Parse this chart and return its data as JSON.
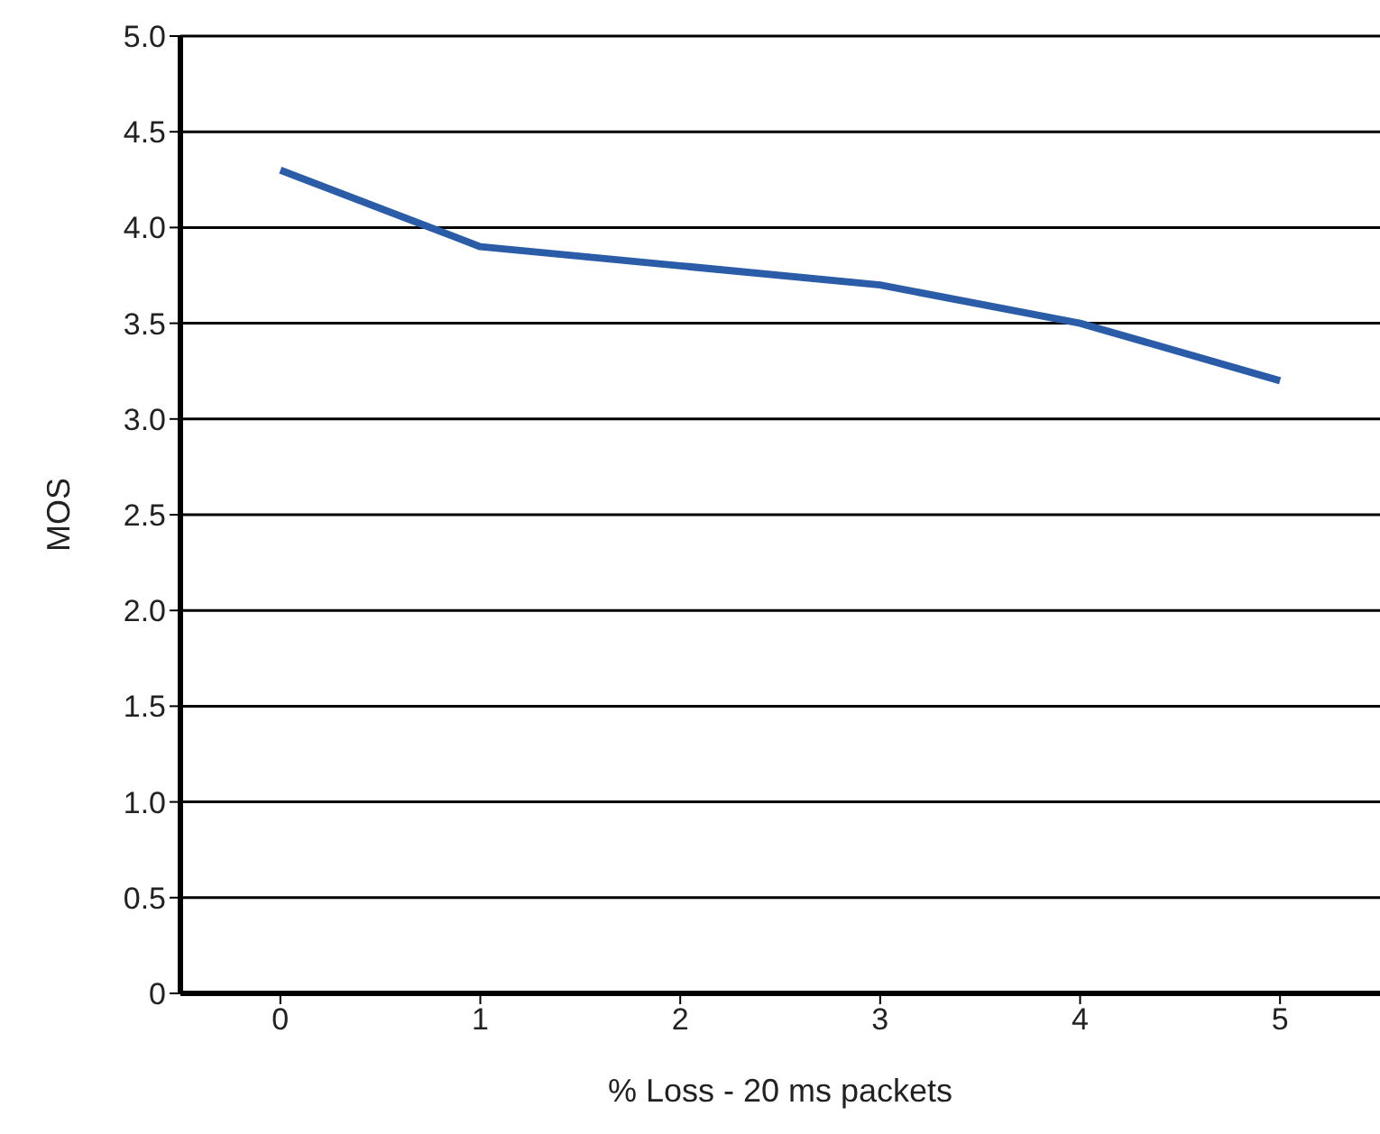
{
  "chart_data": {
    "type": "line",
    "xlabel": "% Loss - 20 ms packets",
    "ylabel": "MOS",
    "categories": [
      "0",
      "1",
      "2",
      "3",
      "4",
      "5"
    ],
    "series": [
      {
        "color": "#2a5ca8",
        "values": [
          4.3,
          3.9,
          3.8,
          3.7,
          3.5,
          3.2
        ]
      }
    ],
    "ylim": [
      0,
      5
    ],
    "yticks": [
      0,
      0.5,
      {
        "value": 1,
        "label": "1.0"
      },
      1.5,
      {
        "value": 2,
        "label": "2.0"
      },
      2.5,
      {
        "value": 3,
        "label": "3.0"
      },
      3.5,
      {
        "value": 4,
        "label": "4.0"
      },
      4.5,
      {
        "value": 5,
        "label": "5.0"
      }
    ],
    "grid": "y",
    "legend": false,
    "marker": "none",
    "line_style": "solid"
  }
}
